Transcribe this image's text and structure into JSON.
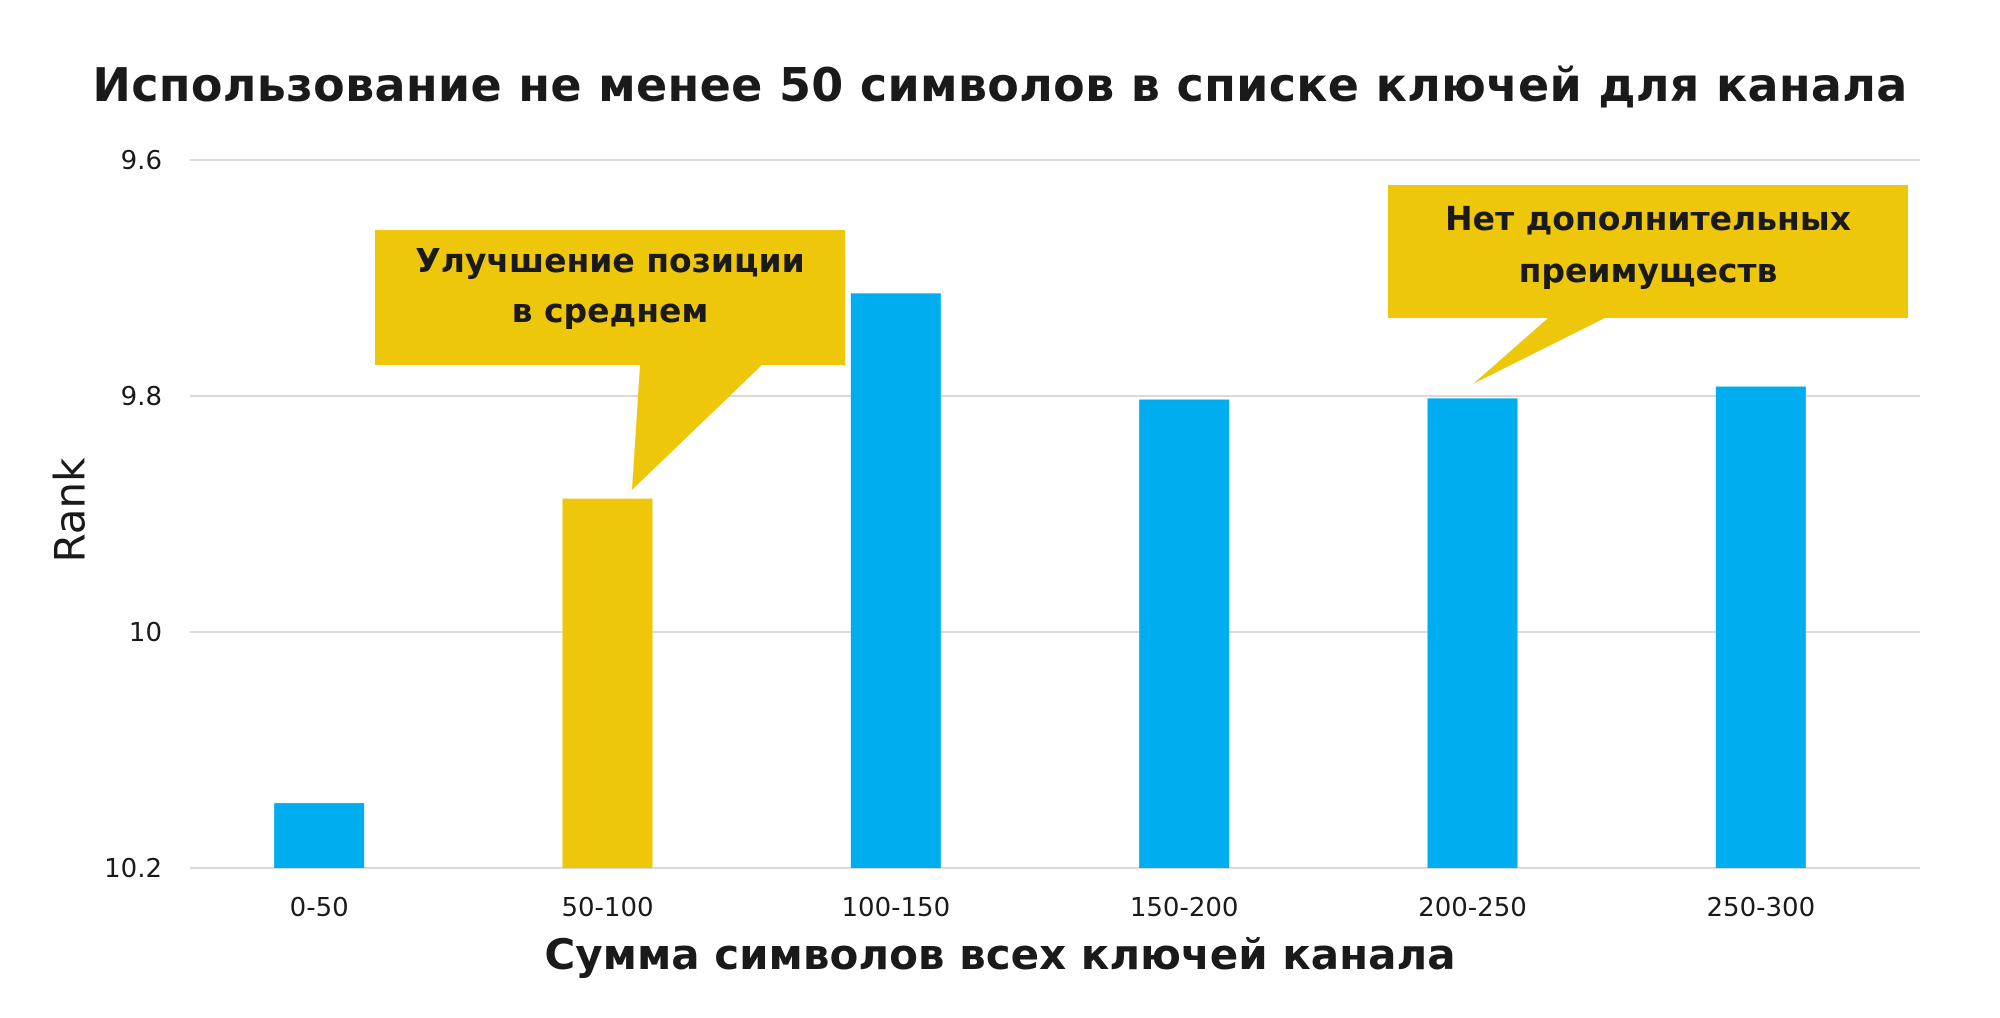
{
  "chart_data": {
    "type": "bar",
    "title": "Использование не менее 50 символов в списке ключей для канала",
    "xlabel": "Сумма символов всех ключей канала",
    "ylabel": "Rank",
    "categories": [
      "0-50",
      "50-100",
      "100-150",
      "150-200",
      "200-250",
      "250-300"
    ],
    "values": [
      10.145,
      9.887,
      9.713,
      9.803,
      9.802,
      9.792
    ],
    "highlight_index": 1,
    "y_ticks": [
      "9.6",
      "9.8",
      "10",
      "10.2"
    ],
    "ylim": [
      9.6,
      10.2
    ],
    "y_inverted": true,
    "grid": true,
    "colors": {
      "bar": "#00AEEF",
      "highlight": "#EEC60A",
      "grid": "#d9d9d9"
    },
    "annotations": [
      {
        "lines": [
          "Улучшение позиции",
          "в среднем"
        ],
        "target_category": "50-100"
      },
      {
        "lines": [
          "Нет дополнительных",
          "преимуществ"
        ],
        "target_category": "200-250"
      }
    ]
  }
}
